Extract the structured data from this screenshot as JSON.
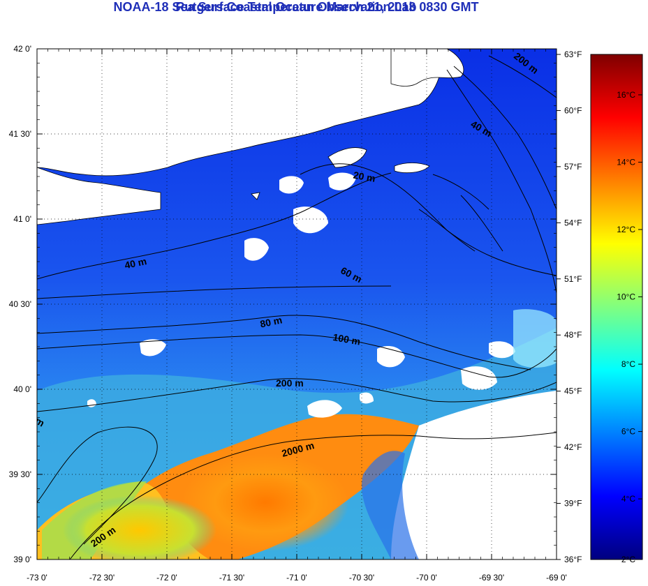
{
  "title": "NOAA-18 Sea Surface Temperature March 21, 2013 0830 GMT",
  "subtitle": "Rutgers Coastal Ocean Observation Lab",
  "lat_ticks": [
    {
      "value": 42.0,
      "label": "42 0'"
    },
    {
      "value": 41.5,
      "label": "41 30'"
    },
    {
      "value": 41.0,
      "label": "41 0'"
    },
    {
      "value": 40.5,
      "label": "40 30'"
    },
    {
      "value": 40.0,
      "label": "40 0'"
    },
    {
      "value": 39.5,
      "label": "39 30'"
    },
    {
      "value": 39.0,
      "label": "39 0'"
    }
  ],
  "lon_ticks": [
    {
      "value": -73.0,
      "label": "-73 0'"
    },
    {
      "value": -72.5,
      "label": "-72 30'"
    },
    {
      "value": -72.0,
      "label": "-72 0'"
    },
    {
      "value": -71.5,
      "label": "-71 30'"
    },
    {
      "value": -71.0,
      "label": "-71 0'"
    },
    {
      "value": -70.5,
      "label": "-70 30'"
    },
    {
      "value": -70.0,
      "label": "-70 0'"
    },
    {
      "value": -69.5,
      "label": "-69 30'"
    },
    {
      "value": -69.0,
      "label": "-69 0'"
    }
  ],
  "lat_range": [
    39.0,
    42.0
  ],
  "lon_range": [
    -73.0,
    -69.0
  ],
  "fahrenheit_ticks": [
    {
      "value": 63,
      "label": "63°F"
    },
    {
      "value": 60,
      "label": "60°F"
    },
    {
      "value": 57,
      "label": "57°F"
    },
    {
      "value": 54,
      "label": "54°F"
    },
    {
      "value": 51,
      "label": "51°F"
    },
    {
      "value": 48,
      "label": "48°F"
    },
    {
      "value": 45,
      "label": "45°F"
    },
    {
      "value": 42,
      "label": "42°F"
    },
    {
      "value": 39,
      "label": "39°F"
    },
    {
      "value": 36,
      "label": "36°F"
    }
  ],
  "celsius_ticks": [
    {
      "value": 16,
      "label": "16°C"
    },
    {
      "value": 14,
      "label": "14°C"
    },
    {
      "value": 12,
      "label": "12°C"
    },
    {
      "value": 10,
      "label": "10°C"
    },
    {
      "value": 8,
      "label": "8°C"
    },
    {
      "value": 6,
      "label": "6°C"
    },
    {
      "value": 4,
      "label": "4°C"
    },
    {
      "value": 2,
      "label": "2°C"
    }
  ],
  "colorbar_range_celsius": [
    2.2,
    17.2
  ],
  "colorbar_colors": [
    "#00007f",
    "#0000ff",
    "#0080ff",
    "#00ffff",
    "#80ff80",
    "#ffff00",
    "#ff8000",
    "#ff0000",
    "#7f0000"
  ],
  "depth_labels": [
    "200 m",
    "40 m",
    "20 m",
    "40 m",
    "60 m",
    "80 m",
    "100 m",
    "200 m",
    "2000 m",
    "200 m",
    "m"
  ],
  "land_color": "#ffffff",
  "cloud_color": "#ffffff",
  "grid": true
}
